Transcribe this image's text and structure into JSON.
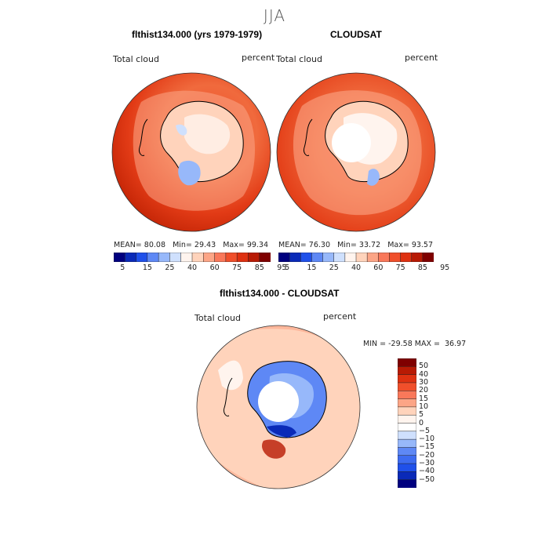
{
  "figure": {
    "suptitle": "JJA",
    "colors": {
      "background": "#ffffff",
      "coast": "#000000",
      "outline": "#333333"
    }
  },
  "chart_data": [
    {
      "type": "heatmap",
      "projection": "south-polar-stereographic",
      "title": "flthist134.000 (yrs 1979-1979)",
      "left_label": "Total cloud",
      "right_label": "percent",
      "stats": {
        "mean_label": "MEAN=",
        "mean": "80.08",
        "min_label": "Min=",
        "min": "29.43",
        "max_label": "Max=",
        "max": "99.34"
      },
      "colorbar": {
        "orientation": "horizontal",
        "colors": [
          "#00007f",
          "#0a2ab8",
          "#1f50ea",
          "#5e88f5",
          "#97b8fa",
          "#cfe0fd",
          "#fff4ee",
          "#ffd3bb",
          "#fca586",
          "#f9785a",
          "#f04f2b",
          "#de3111",
          "#b81a04",
          "#7f0000"
        ],
        "tick_labels": [
          "5",
          "15",
          "25",
          "40",
          "60",
          "75",
          "85",
          "95"
        ]
      },
      "field_regions": [
        {
          "region": "ocean_far",
          "value": 88
        },
        {
          "region": "ocean_near_coast",
          "value": 78
        },
        {
          "region": "antarctic_interior",
          "value": 62
        },
        {
          "region": "antarctic_low",
          "value": 45
        }
      ]
    },
    {
      "type": "heatmap",
      "projection": "south-polar-stereographic",
      "title": "CLOUDSAT",
      "left_label": "Total cloud",
      "right_label": "percent",
      "stats": {
        "mean_label": "MEAN=",
        "mean": "76.30",
        "min_label": "Min=",
        "min": "33.72",
        "max_label": "Max=",
        "max": "93.57"
      },
      "colorbar": {
        "orientation": "horizontal",
        "colors": [
          "#00007f",
          "#0a2ab8",
          "#1f50ea",
          "#5e88f5",
          "#97b8fa",
          "#cfe0fd",
          "#fff4ee",
          "#ffd3bb",
          "#fca586",
          "#f9785a",
          "#f04f2b",
          "#de3111",
          "#b81a04",
          "#7f0000"
        ],
        "tick_labels": [
          "5",
          "15",
          "25",
          "40",
          "60",
          "75",
          "85",
          "95"
        ]
      },
      "field_regions": [
        {
          "region": "ocean_far",
          "value": 86
        },
        {
          "region": "ocean_near_coast",
          "value": 78
        },
        {
          "region": "antarctic_interior",
          "value": 62
        },
        {
          "region": "no_data_pole",
          "value": null
        }
      ]
    },
    {
      "type": "heatmap",
      "projection": "south-polar-stereographic",
      "title": "flthist134.000 - CLOUDSAT",
      "left_label": "Total cloud",
      "right_label": "percent",
      "stats": {
        "min_label": "MIN =",
        "min": "-29.58",
        "max_label": "MAX =",
        "max": "36.97"
      },
      "colorbar": {
        "orientation": "vertical",
        "colors_top_to_bottom": [
          "#7f0000",
          "#b81a04",
          "#de3111",
          "#f04f2b",
          "#f9785a",
          "#fca586",
          "#ffd3bb",
          "#fff4ee",
          "#ffffff",
          "#cfe0fd",
          "#97b8fa",
          "#5e88f5",
          "#3d6bf0",
          "#1f50ea",
          "#0a2ab8",
          "#00007f"
        ],
        "tick_labels_top_to_bottom": [
          "50",
          "40",
          "30",
          "20",
          "15",
          "10",
          "5",
          "0",
          "−5",
          "−10",
          "−15",
          "−20",
          "−30",
          "−40",
          "−50"
        ]
      },
      "field_regions": [
        {
          "region": "ocean_far",
          "value": 7
        },
        {
          "region": "ocean_near_coast",
          "value": 3
        },
        {
          "region": "antarctic_coast",
          "value": -18
        },
        {
          "region": "antarctic_interior",
          "value": -4
        },
        {
          "region": "no_data_pole",
          "value": null
        }
      ]
    }
  ]
}
